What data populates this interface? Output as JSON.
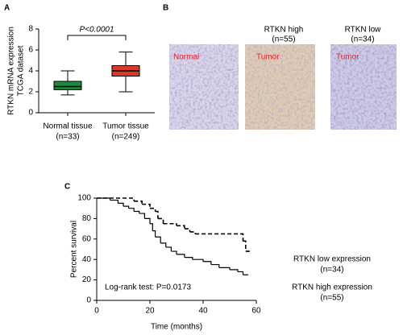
{
  "chart_data": [
    {
      "type": "box",
      "panel": "A",
      "ylabel": [
        "RTKN mRNA expression",
        "TCGA dataset"
      ],
      "categories": [
        "Normal tissue",
        "Tumor tissue"
      ],
      "category_notes": [
        "(n=33)",
        "(n=249)"
      ],
      "boxes": [
        {
          "min": 1.7,
          "q1": 2.2,
          "median": 2.5,
          "q3": 3.0,
          "max": 4.0,
          "color": "#1f8a3c"
        },
        {
          "min": 2.0,
          "q1": 3.5,
          "median": 4.0,
          "q3": 4.5,
          "max": 5.8,
          "color": "#d93a2b"
        }
      ],
      "annotation": "P<0.0001",
      "ylim": [
        0,
        8
      ],
      "yticks": [
        0,
        2,
        4,
        6,
        8
      ]
    },
    {
      "type": "step",
      "panel": "C",
      "ylabel": "Percent survival",
      "xlabel": "Time (months)",
      "series": [
        {
          "name": "RTKN low expression",
          "note": "(n=34)",
          "dashed": true,
          "color": "#000000",
          "x": [
            0,
            14,
            17,
            20,
            22,
            23,
            25,
            30,
            33,
            35,
            37,
            54,
            55,
            56,
            58
          ],
          "values": [
            100,
            97,
            94,
            90,
            87,
            80,
            75,
            73,
            70,
            67,
            65,
            65,
            58,
            48,
            48
          ]
        },
        {
          "name": "RTKN high expression",
          "note": "(n=55)",
          "dashed": false,
          "color": "#000000",
          "x": [
            0,
            5,
            8,
            10,
            12,
            14,
            16,
            18,
            20,
            21,
            22,
            24,
            26,
            28,
            30,
            33,
            36,
            40,
            43,
            46,
            50,
            53,
            55,
            57
          ],
          "values": [
            100,
            98,
            95,
            92,
            90,
            87,
            85,
            80,
            75,
            68,
            62,
            56,
            52,
            48,
            45,
            42,
            40,
            38,
            35,
            32,
            30,
            28,
            25,
            25
          ]
        }
      ],
      "annotation": "Log-rank test: P=0.0173",
      "xlim": [
        0,
        60
      ],
      "xticks": [
        0,
        20,
        40,
        60
      ],
      "ylim": [
        0,
        100
      ],
      "yticks": [
        0,
        20,
        40,
        60,
        80,
        100
      ]
    }
  ],
  "panel_b": {
    "panel": "B",
    "headers": [
      [
        "RTKN high",
        "(n=55)"
      ],
      [
        "RTKN low",
        "(n=34)"
      ]
    ],
    "image_labels": [
      "Normal",
      "Tumor",
      "Tumor"
    ]
  }
}
